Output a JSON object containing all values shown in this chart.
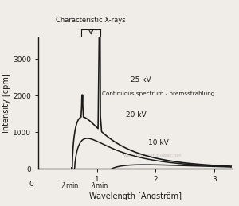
{
  "ylabel": "Intensity [cpm]",
  "xlabel_display": "Wavelength [Angström]",
  "yticks": [
    0,
    1000,
    2000,
    3000
  ],
  "xticks_numeric": [
    1,
    2,
    3
  ],
  "xmin_pos": 0.55,
  "xmin2_pos": 1.05,
  "char_xrays_label": "Characteristic X-rays",
  "continuous_label": "Continuous spectrum - bremsstrahlung",
  "label_25kV": "25 kV",
  "label_20kV": "20 kV",
  "label_10kV": "10 kV",
  "watermark": "www.nuclear-power.net",
  "bg_color": "#f0ede8",
  "line_color": "#1a1a1a",
  "watermark_color": "#c0b8b0",
  "xlim": [
    0,
    3.3
  ],
  "ylim": [
    0,
    3600
  ]
}
